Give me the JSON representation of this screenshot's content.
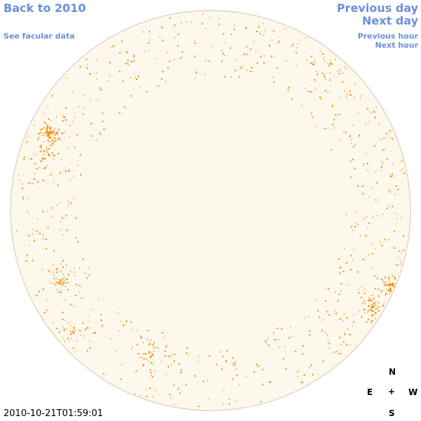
{
  "nav": {
    "back": "Back to 2010",
    "facular": "See facular data",
    "previous_day": "Previous day",
    "next_day": "Next day",
    "previous_hour": "Previous hour",
    "next_hour": "Next hour"
  },
  "compass": {
    "n": "N",
    "e": "E",
    "center": "+",
    "w": "W",
    "s": "S"
  },
  "timestamp": "2010-10-21T01:59:01"
}
